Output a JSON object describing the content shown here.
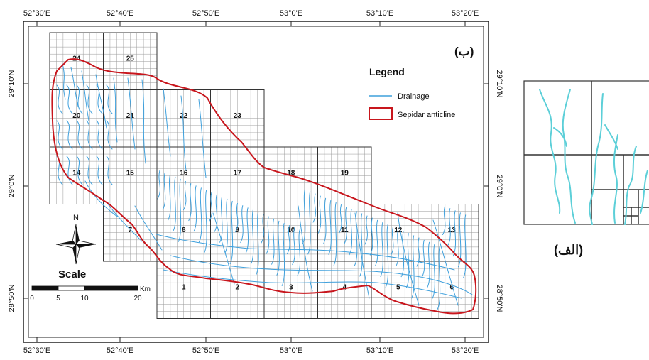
{
  "map": {
    "top_ticks": [
      "52°30'E",
      "52°40'E",
      "52°50'E",
      "53°0'E",
      "53°10'E",
      "53°20'E"
    ],
    "bottom_ticks": [
      "52°30'E",
      "52°40'E",
      "52°50'E",
      "53°0'E",
      "53°10'E",
      "53°20'E"
    ],
    "left_ticks": [
      "29°10'N",
      "29°0'N",
      "28°50'N"
    ],
    "right_ticks": [
      "29°10'N",
      "29°0'N",
      "28°50'N"
    ],
    "panel_label": "(ب)",
    "legend": {
      "title": "Legend",
      "items": [
        {
          "label": "Drainage",
          "color": "#3fa0dc",
          "symbol": "line"
        },
        {
          "label": "Sepidar anticline",
          "color": "#c8161d",
          "symbol": "box"
        }
      ]
    },
    "north_label": "N",
    "scale": {
      "title": "Scale",
      "unit": "Km",
      "ticks": [
        "0",
        "5",
        "10",
        "20"
      ]
    },
    "tiles": [
      {
        "id": "24",
        "col": 0,
        "row": 0
      },
      {
        "id": "25",
        "col": 1,
        "row": 0
      },
      {
        "id": "20",
        "col": 0,
        "row": 1
      },
      {
        "id": "21",
        "col": 1,
        "row": 1
      },
      {
        "id": "22",
        "col": 2,
        "row": 1
      },
      {
        "id": "23",
        "col": 3,
        "row": 1
      },
      {
        "id": "14",
        "col": 0,
        "row": 2
      },
      {
        "id": "15",
        "col": 1,
        "row": 2
      },
      {
        "id": "16",
        "col": 2,
        "row": 2
      },
      {
        "id": "17",
        "col": 3,
        "row": 2
      },
      {
        "id": "18",
        "col": 4,
        "row": 2
      },
      {
        "id": "19",
        "col": 5,
        "row": 2
      },
      {
        "id": "7",
        "col": 1,
        "row": 3
      },
      {
        "id": "8",
        "col": 2,
        "row": 3
      },
      {
        "id": "9",
        "col": 3,
        "row": 3
      },
      {
        "id": "10",
        "col": 4,
        "row": 3
      },
      {
        "id": "11",
        "col": 5,
        "row": 3
      },
      {
        "id": "12",
        "col": 6,
        "row": 3
      },
      {
        "id": "13",
        "col": 7,
        "row": 3
      },
      {
        "id": "1",
        "col": 2,
        "row": 4
      },
      {
        "id": "2",
        "col": 3,
        "row": 4
      },
      {
        "id": "3",
        "col": 4,
        "row": 4
      },
      {
        "id": "4",
        "col": 5,
        "row": 4
      },
      {
        "id": "5",
        "col": 6,
        "row": 4
      },
      {
        "id": "6",
        "col": 7,
        "row": 4
      }
    ]
  },
  "inset": {
    "label": "(الف)",
    "drainage_color": "#5ccfd8"
  }
}
